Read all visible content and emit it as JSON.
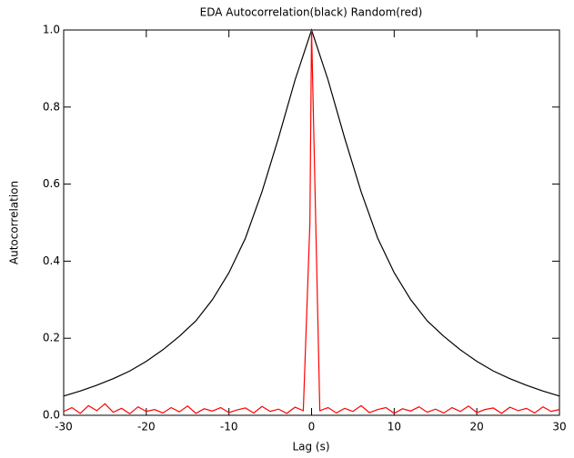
{
  "chart_data": {
    "type": "line",
    "title": "EDA Autocorrelation(black) Random(red)",
    "xlabel": "Lag (s)",
    "ylabel": "Autocorrelation",
    "xlim": [
      -30,
      30
    ],
    "ylim": [
      0,
      1
    ],
    "xticks": [
      -30,
      -20,
      -10,
      0,
      10,
      20,
      30
    ],
    "yticks": [
      {
        "value": 0,
        "label": "0.0"
      },
      0.2,
      0.4,
      0.6,
      0.8,
      {
        "value": 1,
        "label": "1.0"
      }
    ],
    "series": [
      {
        "color": "#000000",
        "x": [
          -30,
          -28,
          -26,
          -24,
          -22,
          -20,
          -18,
          -16,
          -14,
          -12,
          -10,
          -8,
          -6,
          -4,
          -2,
          0,
          2,
          4,
          6,
          8,
          10,
          12,
          14,
          16,
          18,
          20,
          22,
          24,
          26,
          28,
          30
        ],
        "values": [
          0.05,
          0.063,
          0.078,
          0.095,
          0.115,
          0.14,
          0.17,
          0.205,
          0.245,
          0.3,
          0.37,
          0.46,
          0.58,
          0.72,
          0.87,
          1.0,
          0.87,
          0.72,
          0.58,
          0.46,
          0.37,
          0.3,
          0.245,
          0.205,
          0.17,
          0.14,
          0.115,
          0.095,
          0.078,
          0.063,
          0.05
        ]
      },
      {
        "color": "#ff0000",
        "x": [
          -30,
          -29,
          -28,
          -27,
          -26,
          -25,
          -24,
          -23,
          -22,
          -21,
          -20,
          -19,
          -18,
          -17,
          -16,
          -15,
          -14,
          -13,
          -12,
          -11,
          -10,
          -9,
          -8,
          -7,
          -6,
          -5,
          -4,
          -3,
          -2,
          -1,
          -0.2,
          0,
          1,
          2,
          3,
          4,
          5,
          6,
          7,
          8,
          9,
          10,
          11,
          12,
          13,
          14,
          15,
          16,
          17,
          18,
          19,
          20,
          21,
          22,
          23,
          24,
          25,
          26,
          27,
          28,
          29,
          30
        ],
        "values": [
          0.01,
          0.02,
          0.005,
          0.025,
          0.012,
          0.03,
          0.008,
          0.018,
          0.004,
          0.022,
          0.01,
          0.015,
          0.006,
          0.02,
          0.009,
          0.024,
          0.005,
          0.017,
          0.011,
          0.02,
          0.007,
          0.014,
          0.019,
          0.006,
          0.023,
          0.01,
          0.016,
          0.005,
          0.021,
          0.012,
          0.5,
          1.0,
          0.012,
          0.02,
          0.006,
          0.018,
          0.01,
          0.025,
          0.007,
          0.015,
          0.02,
          0.005,
          0.017,
          0.011,
          0.022,
          0.008,
          0.016,
          0.006,
          0.02,
          0.01,
          0.024,
          0.007,
          0.015,
          0.019,
          0.005,
          0.021,
          0.012,
          0.018,
          0.006,
          0.022,
          0.01,
          0.015
        ]
      }
    ]
  }
}
